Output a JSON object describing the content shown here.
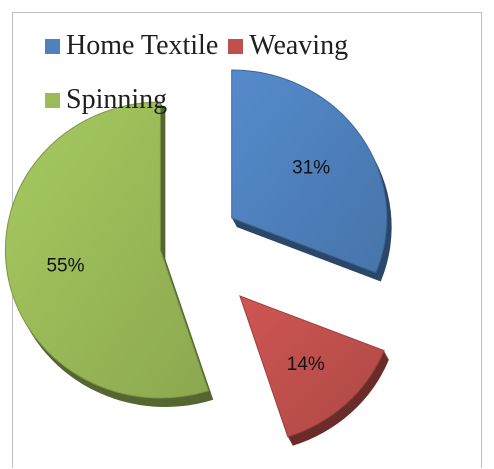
{
  "chart_data": {
    "type": "pie",
    "title": "",
    "categories": [
      "Home Textile",
      "Weaving",
      "Spinning"
    ],
    "values": [
      31,
      14,
      55
    ],
    "labels": [
      "31%",
      "14%",
      "55%"
    ],
    "exploded": true,
    "style": "3d",
    "colors": {
      "Home Textile": "#4f81bd",
      "Weaving": "#c0504d",
      "Spinning": "#9bbb59"
    },
    "legend_position": "top"
  },
  "legend": {
    "items": [
      {
        "name": "Home Textile",
        "color": "#4f81bd"
      },
      {
        "name": "Weaving",
        "color": "#c0504d"
      },
      {
        "name": "Spinning",
        "color": "#9bbb59"
      }
    ]
  }
}
